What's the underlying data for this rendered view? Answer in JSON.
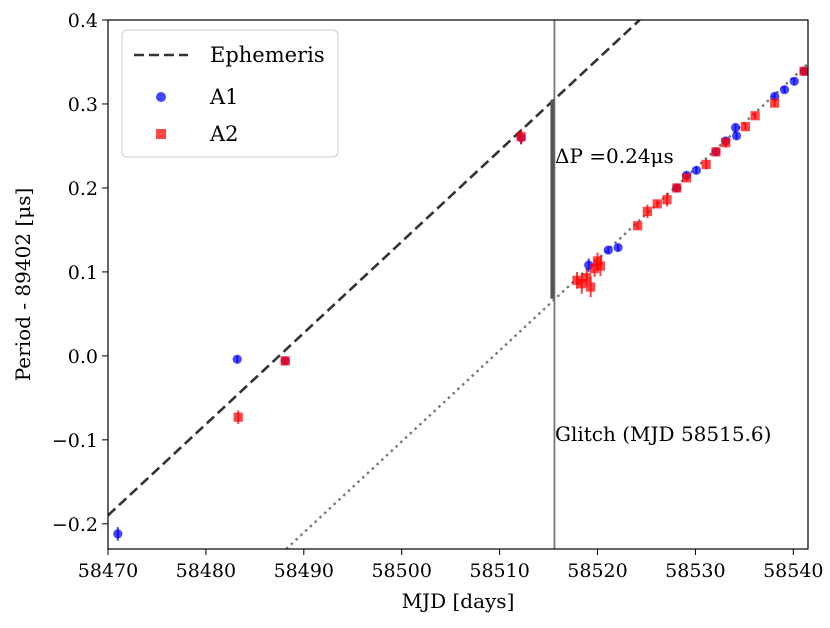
{
  "chart_data": {
    "type": "scatter",
    "xlabel": "MJD [days]",
    "ylabel": "Period - 89402 [μs]",
    "xlim": [
      58470,
      58541.5
    ],
    "ylim": [
      -0.23,
      0.4
    ],
    "xticks": [
      58470,
      58480,
      58490,
      58500,
      58510,
      58520,
      58530,
      58540
    ],
    "yticks": [
      -0.2,
      -0.1,
      0.0,
      0.1,
      0.2,
      0.3,
      0.4
    ],
    "ytick_labels": [
      "−0.2",
      "−0.1",
      "0.0",
      "0.1",
      "0.2",
      "0.3",
      "0.4"
    ],
    "grid": false,
    "legend": {
      "position": "top-left",
      "entries": [
        {
          "label": "Ephemeris",
          "style": "dashed-line",
          "color": "#333333"
        },
        {
          "label": "A1",
          "style": "circle",
          "color": "#0000ff"
        },
        {
          "label": "A2",
          "style": "square",
          "color": "#ff0000"
        }
      ]
    },
    "ephemeris": {
      "name": "Ephemeris",
      "x": [
        58470,
        58524.3
      ],
      "y": [
        -0.19,
        0.4
      ],
      "color": "#333333"
    },
    "post_glitch_ephemeris": {
      "x": [
        58488.2,
        58541.5
      ],
      "y": [
        -0.23,
        0.348
      ],
      "color": "#777777"
    },
    "glitch": {
      "mjd": 58515.6,
      "label": "Glitch (MJD 58515.6)",
      "delta_p_label": "ΔP =0.24μs",
      "delta_p_y": [
        0.068,
        0.305
      ],
      "color": "#777777"
    },
    "series": [
      {
        "name": "A1",
        "marker": "circle",
        "color": "#0000ff",
        "points": [
          {
            "x": 58471,
            "y": -0.212,
            "err": 0.008
          },
          {
            "x": 58483.2,
            "y": -0.004,
            "err": 0.004
          },
          {
            "x": 58488.1,
            "y": -0.006,
            "err": 0.004
          },
          {
            "x": 58512.2,
            "y": 0.26,
            "err": 0.008
          },
          {
            "x": 58519.1,
            "y": 0.108,
            "err": 0.008
          },
          {
            "x": 58521.1,
            "y": 0.126,
            "err": 0.004
          },
          {
            "x": 58522.1,
            "y": 0.129,
            "err": 0.004
          },
          {
            "x": 58528.1,
            "y": 0.2,
            "err": 0.004
          },
          {
            "x": 58529.1,
            "y": 0.215,
            "err": 0.004
          },
          {
            "x": 58530.1,
            "y": 0.221,
            "err": 0.004
          },
          {
            "x": 58532.1,
            "y": 0.243,
            "err": 0.004
          },
          {
            "x": 58533.1,
            "y": 0.256,
            "err": 0.004
          },
          {
            "x": 58534.1,
            "y": 0.272,
            "err": 0.004
          },
          {
            "x": 58534.2,
            "y": 0.262,
            "err": 0.004
          },
          {
            "x": 58538.1,
            "y": 0.309,
            "err": 0.004
          },
          {
            "x": 58539.1,
            "y": 0.317,
            "err": 0.004
          },
          {
            "x": 58540.1,
            "y": 0.327,
            "err": 0.004
          },
          {
            "x": 58541.1,
            "y": 0.339,
            "err": 0.004
          }
        ]
      },
      {
        "name": "A2",
        "marker": "square",
        "color": "#ff0000",
        "points": [
          {
            "x": 58483.3,
            "y": -0.073,
            "err": 0.008
          },
          {
            "x": 58488.1,
            "y": -0.006,
            "err": 0.004
          },
          {
            "x": 58512.2,
            "y": 0.261,
            "err": 0.009
          },
          {
            "x": 58517.9,
            "y": 0.09,
            "err": 0.01
          },
          {
            "x": 58518.4,
            "y": 0.086,
            "err": 0.012
          },
          {
            "x": 58518.9,
            "y": 0.093,
            "err": 0.01
          },
          {
            "x": 58519.3,
            "y": 0.082,
            "err": 0.012
          },
          {
            "x": 58519.7,
            "y": 0.104,
            "err": 0.01
          },
          {
            "x": 58520.0,
            "y": 0.113,
            "err": 0.01
          },
          {
            "x": 58520.3,
            "y": 0.107,
            "err": 0.012
          },
          {
            "x": 58524.1,
            "y": 0.155,
            "err": 0.004
          },
          {
            "x": 58525.1,
            "y": 0.172,
            "err": 0.008
          },
          {
            "x": 58526.1,
            "y": 0.181,
            "err": 0.004
          },
          {
            "x": 58527.1,
            "y": 0.186,
            "err": 0.008
          },
          {
            "x": 58528.1,
            "y": 0.2,
            "err": 0.004
          },
          {
            "x": 58529.1,
            "y": 0.212,
            "err": 0.004
          },
          {
            "x": 58531.1,
            "y": 0.228,
            "err": 0.006
          },
          {
            "x": 58532.1,
            "y": 0.243,
            "err": 0.004
          },
          {
            "x": 58533.1,
            "y": 0.254,
            "err": 0.006
          },
          {
            "x": 58535.1,
            "y": 0.273,
            "err": 0.004
          },
          {
            "x": 58536.1,
            "y": 0.286,
            "err": 0.004
          },
          {
            "x": 58538.1,
            "y": 0.301,
            "err": 0.004
          },
          {
            "x": 58541.1,
            "y": 0.339,
            "err": 0.004
          }
        ]
      }
    ]
  }
}
